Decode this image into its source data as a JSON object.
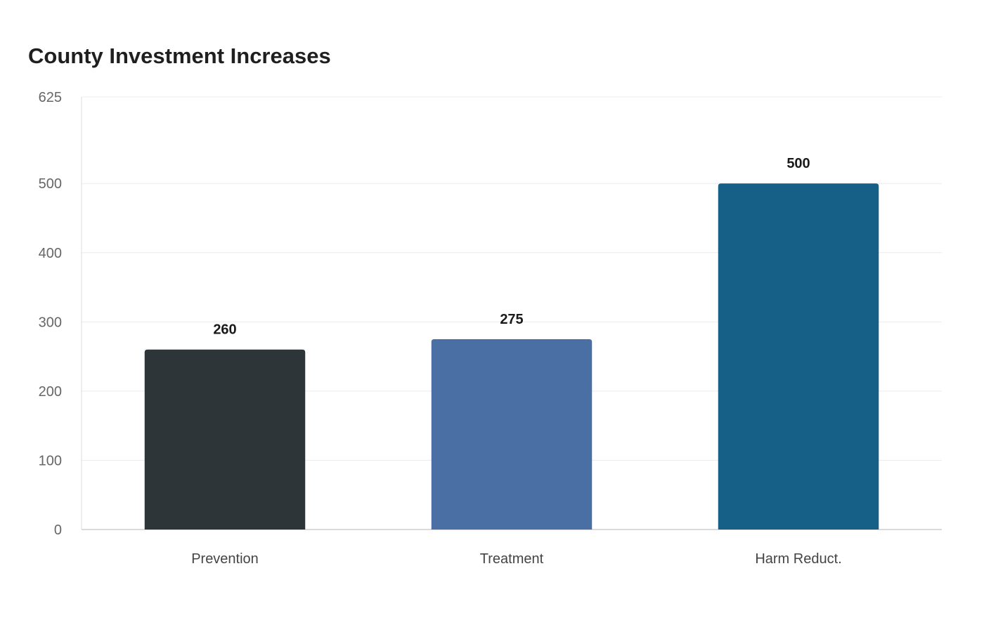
{
  "chart_data": {
    "type": "bar",
    "title": "County Investment Increases",
    "categories": [
      "Prevention",
      "Treatment",
      "Harm Reduct."
    ],
    "values": [
      260,
      275,
      500
    ],
    "colors": [
      "#2e3538",
      "#4a6fa5",
      "#166088"
    ],
    "ylim": [
      0,
      625
    ],
    "yticks": [
      0,
      100,
      200,
      300,
      400,
      500,
      625
    ],
    "grid": true,
    "legend": "none",
    "xlabel": "",
    "ylabel": ""
  }
}
